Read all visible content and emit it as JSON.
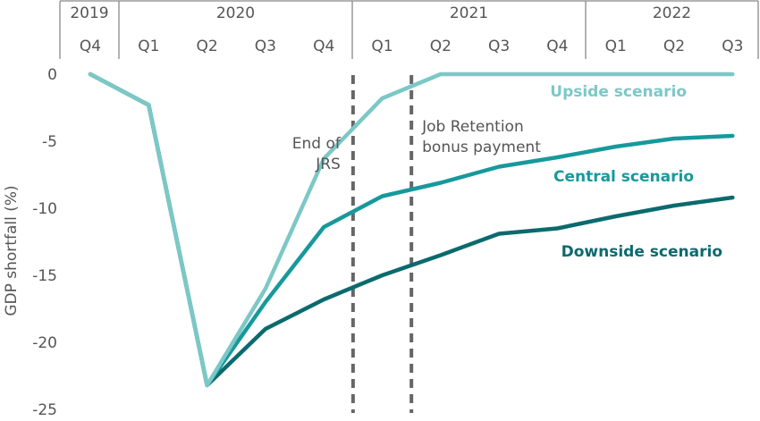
{
  "chart_data": {
    "type": "line",
    "ylabel": "GDP shortfall (%)",
    "ylim": [
      -25,
      0
    ],
    "yticks": [
      0,
      -5,
      -10,
      -15,
      -20,
      -25
    ],
    "years": [
      {
        "label": "2019",
        "span": [
          0,
          0
        ]
      },
      {
        "label": "2020",
        "span": [
          1,
          4
        ]
      },
      {
        "label": "2021",
        "span": [
          5,
          8
        ]
      },
      {
        "label": "2022",
        "span": [
          9,
          11
        ]
      }
    ],
    "categories": [
      "Q4",
      "Q1",
      "Q2",
      "Q3",
      "Q4",
      "Q1",
      "Q2",
      "Q3",
      "Q4",
      "Q1",
      "Q2",
      "Q3"
    ],
    "series": [
      {
        "name": "Downside scenario",
        "color": "#0b6a6e",
        "values": [
          0,
          -2.3,
          -23.2,
          -19,
          -16.8,
          -15,
          -13.5,
          -11.9,
          -11.5,
          -10.6,
          -9.8,
          -9.2
        ]
      },
      {
        "name": "Central scenario",
        "color": "#17999c",
        "values": [
          0,
          -2.3,
          -23.2,
          -17,
          -11.4,
          -9.1,
          -8.1,
          -6.9,
          -6.2,
          -5.4,
          -4.8,
          -4.6
        ]
      },
      {
        "name": "Upside scenario",
        "color": "#7cc8c6",
        "values": [
          0,
          -2.3,
          -23.2,
          -16,
          -6.3,
          -1.8,
          0,
          0,
          0,
          0,
          0,
          0
        ]
      }
    ],
    "annotations": [
      {
        "lines": [
          "End of",
          "JRS"
        ],
        "at": 4.5,
        "align": "right"
      },
      {
        "lines": [
          "Job Retention",
          "bonus payment"
        ],
        "at": 5.5,
        "align": "left"
      }
    ],
    "grid": false,
    "legend": "inline"
  }
}
